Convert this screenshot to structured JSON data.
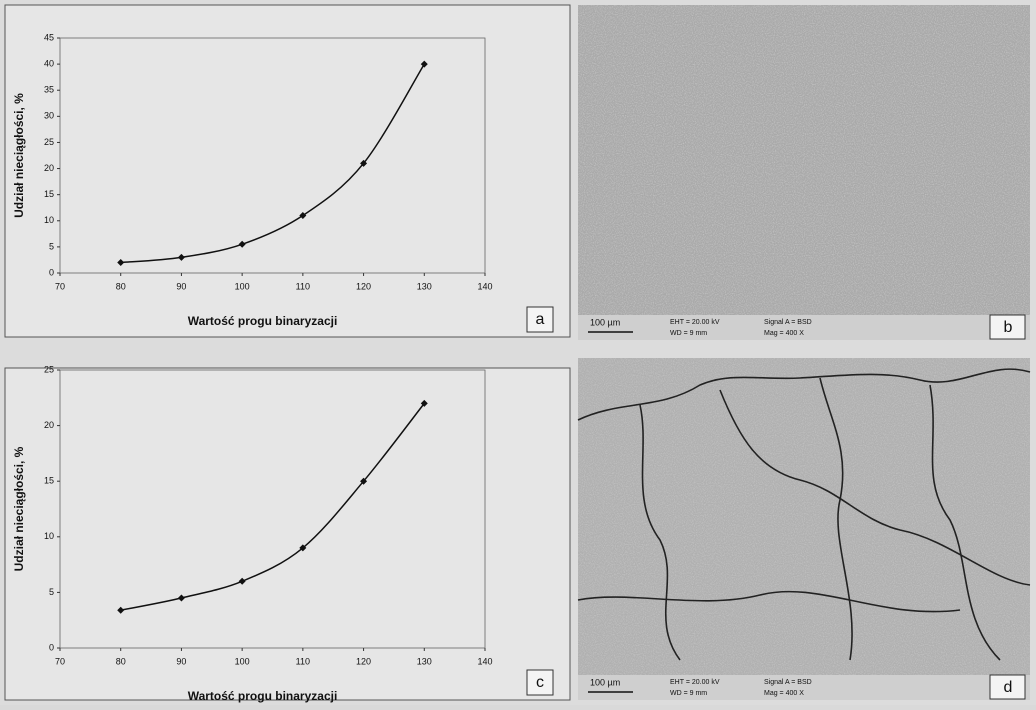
{
  "chart_data": [
    {
      "type": "line",
      "panel_label": "a",
      "y_label": "Udział nieciągłości, %",
      "x_label": "Wartość progu binaryzacji",
      "x": [
        80,
        90,
        100,
        110,
        120,
        130
      ],
      "series": [
        {
          "color": "#111111",
          "values": [
            2,
            3,
            5.5,
            11,
            21,
            40
          ]
        }
      ],
      "xlim": [
        70,
        140
      ],
      "xticks": [
        70,
        80,
        90,
        100,
        110,
        120,
        130,
        140
      ],
      "ylim": [
        0,
        45
      ],
      "yticks": [
        0,
        5,
        10,
        15,
        20,
        25,
        30,
        35,
        40,
        45
      ]
    },
    {
      "type": "line",
      "panel_label": "c",
      "y_label": "Udział nieciągłości, %",
      "x_label": "Wartość progu binaryzacji",
      "x": [
        80,
        90,
        100,
        110,
        120,
        130
      ],
      "series": [
        {
          "color": "#111111",
          "values": [
            3.4,
            4.5,
            6,
            9,
            15,
            22
          ]
        }
      ],
      "xlim": [
        70,
        140
      ],
      "xticks": [
        70,
        80,
        90,
        100,
        110,
        120,
        130,
        140
      ],
      "ylim": [
        0,
        25
      ],
      "yticks": [
        0,
        5,
        10,
        15,
        20,
        25
      ]
    }
  ],
  "images": [
    {
      "panel_label": "b",
      "scale_bar": "100 µm",
      "eht": "EHT = 20.00 kV",
      "wd": "WD = 9 mm",
      "signal": "Signal A = BSD",
      "mag": "Mag = 400 X"
    },
    {
      "panel_label": "d",
      "scale_bar": "100 µm",
      "eht": "EHT = 20.00 kV",
      "wd": "WD = 9 mm",
      "signal": "Signal A = BSD",
      "mag": "Mag = 400 X"
    }
  ]
}
